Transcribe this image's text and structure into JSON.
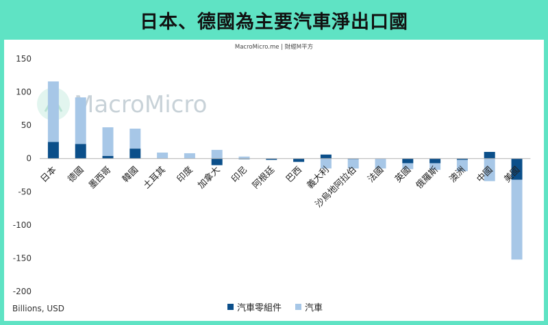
{
  "header": {
    "title": "日本、德國為主要汽車淨出口國"
  },
  "source_note": "MacroMicro.me | 財經M平方",
  "watermark": "MacroMicro",
  "unit_note": "Billions, USD",
  "colors": {
    "parts": "#0b4f8a",
    "cars": "#a7c7e7",
    "background": "#5fe3c4"
  },
  "chart_data": {
    "type": "bar",
    "stacked": true,
    "categories": [
      "日本",
      "德國",
      "墨西哥",
      "韓國",
      "土耳其",
      "印度",
      "加拿大",
      "印尼",
      "阿根廷",
      "巴西",
      "義大利",
      "沙烏地阿拉伯",
      "法國",
      "英國",
      "俄羅斯",
      "澳洲",
      "中國",
      "美國"
    ],
    "series": [
      {
        "name": "汽車零組件",
        "color": "#0b4f8a",
        "values": [
          25,
          22,
          4,
          15,
          0,
          0,
          -10,
          -1,
          -2,
          -5,
          6,
          -1,
          0,
          -7,
          -7,
          -2,
          10,
          -32
        ]
      },
      {
        "name": "汽車",
        "color": "#a7c7e7",
        "values": [
          91,
          70,
          43,
          30,
          9,
          8,
          13,
          3,
          0,
          0,
          -15,
          -14,
          -15,
          -9,
          -10,
          -17,
          -34,
          -120
        ]
      }
    ],
    "ylim": [
      -200,
      150
    ],
    "yticks": [
      -200,
      -150,
      -100,
      -50,
      0,
      50,
      100,
      150
    ],
    "legend_position": "bottom-center",
    "grid": false
  }
}
